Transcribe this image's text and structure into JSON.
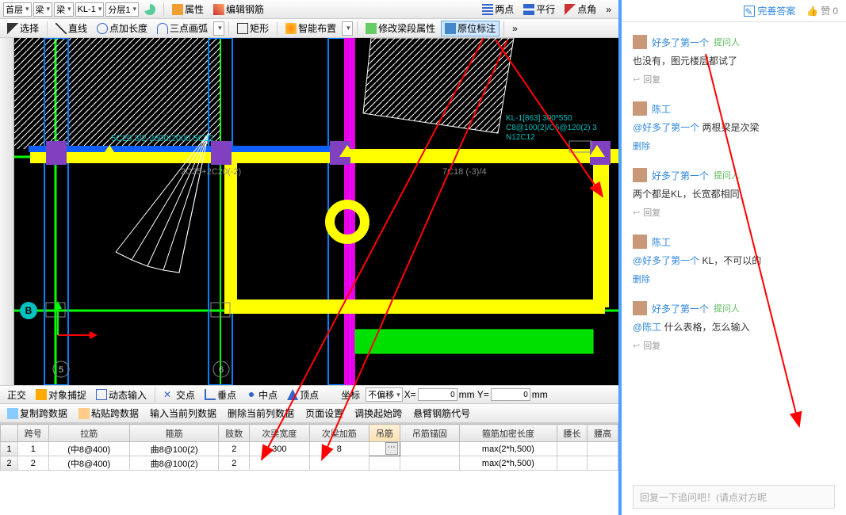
{
  "toolbar1": {
    "floor": "首层",
    "category": "梁",
    "subcat": "梁",
    "member": "KL-1",
    "level": "分层1",
    "attr": "属性",
    "edit_rebar": "编辑钢筋",
    "two_pt": "两点",
    "parallel": "平行",
    "pt_angle": "点角"
  },
  "toolbar2": {
    "select": "选择",
    "line": "直线",
    "pt_add_len": "点加长度",
    "three_pt_arc": "三点画弧",
    "rect": "矩形",
    "smart_place": "智能布置",
    "mod_span_attr": "修改梁段属性",
    "in_place_label": "原位标注"
  },
  "canvas": {
    "label_top_left": "5C20 3/2-2600/2000 5C22",
    "label_mid": "2C25+2C20(-2)",
    "label_right": "7C18 (-3)/4",
    "label_info1": "KL-1[863] 300*550",
    "label_info2": "C8@100(2)/C6@120(2) 3",
    "label_info3": "N12C12",
    "axis_B": "B",
    "axis_5": "5",
    "axis_6": "6"
  },
  "statusbar": {
    "ortho": "正交",
    "osnap": "对象捕捉",
    "dyn": "动态输入",
    "intersect": "交点",
    "perp": "垂点",
    "mid": "中点",
    "vertex": "顶点",
    "coord": "坐标",
    "nooffset": "不偏移",
    "x_val": "0",
    "y_val": "0",
    "x_lbl": "X=",
    "y_lbl": "mm Y=",
    "y_unit": "mm"
  },
  "toolbar3": {
    "copy_span": "复制跨数据",
    "paste_span": "粘贴跨数据",
    "input_col": "输入当前列数据",
    "del_col": "删除当前列数据",
    "page_setup": "页面设置",
    "adj_start_span": "调换起始跨",
    "cantilever": "悬臂钢筋代号"
  },
  "grid": {
    "headers": [
      "跨号",
      "拉筋",
      "箍筋",
      "肢数",
      "次梁宽度",
      "次梁加筋",
      "吊筋",
      "吊筋锚固",
      "箍筋加密长度",
      "腰长",
      "腰高"
    ],
    "rows": [
      {
        "n": "1",
        "span": "1",
        "lajin": "(中8@400)",
        "gujin": "曲8@100(2)",
        "zhi": "2",
        "ciliangkd": "300",
        "ciliangjj": "8",
        "diaojin": "",
        "diaojinmg": "",
        "gjjm": "max(2*h,500)",
        "yc": "",
        "yg": ""
      },
      {
        "n": "2",
        "span": "2",
        "lajin": "(中8@400)",
        "gujin": "曲8@100(2)",
        "zhi": "2",
        "ciliangkd": "",
        "ciliangjj": "",
        "diaojin": "",
        "diaojinmg": "",
        "gjjm": "max(2*h,500)",
        "yc": "",
        "yg": ""
      }
    ]
  },
  "right": {
    "perfect_answer": "完善答案",
    "like": "赞",
    "like_count": "0",
    "reply": "回复",
    "delete": "删除",
    "reply_placeholder": "回复一下追问吧！(请点对方昵",
    "comments": [
      {
        "user": "好多了第一个",
        "tag": "提问人",
        "body": "也没有，图元楼层都试了",
        "actions": [
          "reply"
        ]
      },
      {
        "user": "陈工",
        "tag": "",
        "body_at": "@好多了第一个",
        "body": " 两根梁是次梁",
        "actions": [
          "delete"
        ]
      },
      {
        "user": "好多了第一个",
        "tag": "提问人",
        "body": "两个都是KL，长宽都相同",
        "actions": [
          "reply"
        ]
      },
      {
        "user": "陈工",
        "tag": "",
        "body_at": "@好多了第一个",
        "body": " KL，不可以的",
        "actions": [
          "delete"
        ]
      },
      {
        "user": "好多了第一个",
        "tag": "提问人",
        "body_at": "@陈工",
        "body": " 什么表格，怎么输入",
        "actions": [
          "reply"
        ]
      }
    ]
  },
  "colors": {
    "accent_blue": "#4da0ff",
    "link": "#3388dd",
    "green_tag": "#5cb85c"
  }
}
